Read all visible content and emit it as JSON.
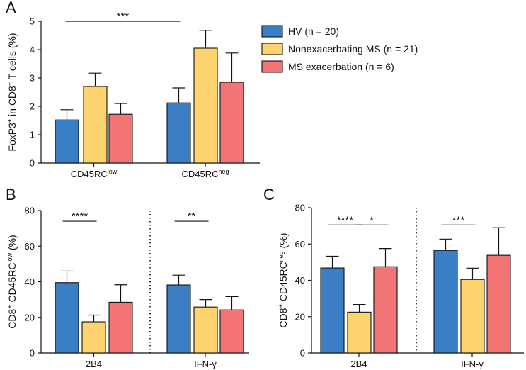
{
  "chart_data": [
    {
      "panel": "A",
      "type": "bar",
      "ylabel_main": "FoxP3",
      "ylabel_sup": "+",
      "ylabel_mid": " in CD8",
      "ylabel_sup2": "+",
      "ylabel_end": " T cells (%)",
      "ylim": [
        0,
        5
      ],
      "yticks": [
        0,
        1,
        2,
        3,
        4,
        5
      ],
      "categories": [
        {
          "main": "CD45RC",
          "sup": "low"
        },
        {
          "main": "CD45RC",
          "sup": "neg"
        }
      ],
      "series": [
        {
          "name": "HV (n = 20)",
          "color": "#3a7fc6",
          "values": [
            1.52,
            2.12
          ],
          "errors": [
            0.36,
            0.53
          ]
        },
        {
          "name": "Nonexacerbating MS (n = 21)",
          "color": "#fdd36f",
          "values": [
            2.7,
            4.05
          ],
          "errors": [
            0.47,
            0.63
          ]
        },
        {
          "name": "MS exacerbation (n = 6)",
          "color": "#f27474",
          "values": [
            1.72,
            2.85
          ],
          "errors": [
            0.38,
            1.03
          ]
        }
      ],
      "significance": [
        {
          "label": "***",
          "from_category": 0,
          "from_series": 0,
          "to_category": 1,
          "to_series": 0,
          "y": 5.0
        }
      ]
    },
    {
      "panel": "B",
      "type": "bar",
      "ylabel_main": "CD8",
      "ylabel_sup": "+",
      "ylabel_mid": " CD45RC",
      "ylabel_sup2": "low",
      "ylabel_end": " (%)",
      "ylim": [
        0,
        80
      ],
      "yticks": [
        0,
        20,
        40,
        60,
        80
      ],
      "categories": [
        {
          "main": "2B4",
          "sup": ""
        },
        {
          "main": "IFN-γ",
          "sup": ""
        }
      ],
      "series": [
        {
          "name": "HV (n = 20)",
          "color": "#3a7fc6",
          "values": [
            39.5,
            38.2
          ],
          "errors": [
            6.5,
            5.5
          ]
        },
        {
          "name": "Nonexacerbating MS (n = 21)",
          "color": "#fdd36f",
          "values": [
            17.5,
            25.8
          ],
          "errors": [
            3.8,
            4.2
          ]
        },
        {
          "name": "MS exacerbation (n = 6)",
          "color": "#f27474",
          "values": [
            28.5,
            24.2
          ],
          "errors": [
            9.8,
            7.5
          ]
        }
      ],
      "significance": [
        {
          "label": "****",
          "from_category": 0,
          "from_series": 0,
          "to_category": 0,
          "to_series": 1,
          "y": 74
        },
        {
          "label": "**",
          "from_category": 1,
          "from_series": 0,
          "to_category": 1,
          "to_series": 1,
          "y": 74
        }
      ],
      "separator": true
    },
    {
      "panel": "C",
      "type": "bar",
      "ylabel_main": "CD8",
      "ylabel_sup": "+",
      "ylabel_mid": " CD45RC",
      "ylabel_sup2": "neg",
      "ylabel_end": " (%)",
      "ylim": [
        0,
        80
      ],
      "yticks": [
        0,
        20,
        40,
        60,
        80
      ],
      "categories": [
        {
          "main": "2B4",
          "sup": ""
        },
        {
          "main": "IFN-γ",
          "sup": ""
        }
      ],
      "series": [
        {
          "name": "HV (n = 20)",
          "color": "#3a7fc6",
          "values": [
            46.8,
            56.5
          ],
          "errors": [
            6.5,
            6.2
          ]
        },
        {
          "name": "Nonexacerbating MS (n = 21)",
          "color": "#fdd36f",
          "values": [
            22.5,
            40.5
          ],
          "errors": [
            4.2,
            6.2
          ]
        },
        {
          "name": "MS exacerbation (n = 6)",
          "color": "#f27474",
          "values": [
            47.5,
            53.8
          ],
          "errors": [
            10.0,
            15.2
          ]
        }
      ],
      "significance": [
        {
          "label": "****",
          "from_category": 0,
          "from_series": 0,
          "to_category": 0,
          "to_series": 1,
          "y": 70.5
        },
        {
          "label": "*",
          "from_category": 0,
          "from_series": 1,
          "to_category": 0,
          "to_series": 2,
          "y": 70.5
        },
        {
          "label": "***",
          "from_category": 1,
          "from_series": 0,
          "to_category": 1,
          "to_series": 1,
          "y": 70.5
        }
      ],
      "separator": true
    }
  ],
  "legend": {
    "placement": "top-right",
    "entries": [
      {
        "label": "HV (n = 20)",
        "color": "#3a7fc6"
      },
      {
        "label": "Nonexacerbating MS (n = 21)",
        "color": "#fdd36f"
      },
      {
        "label": "MS exacerbation (n = 6)",
        "color": "#f27474"
      }
    ]
  }
}
